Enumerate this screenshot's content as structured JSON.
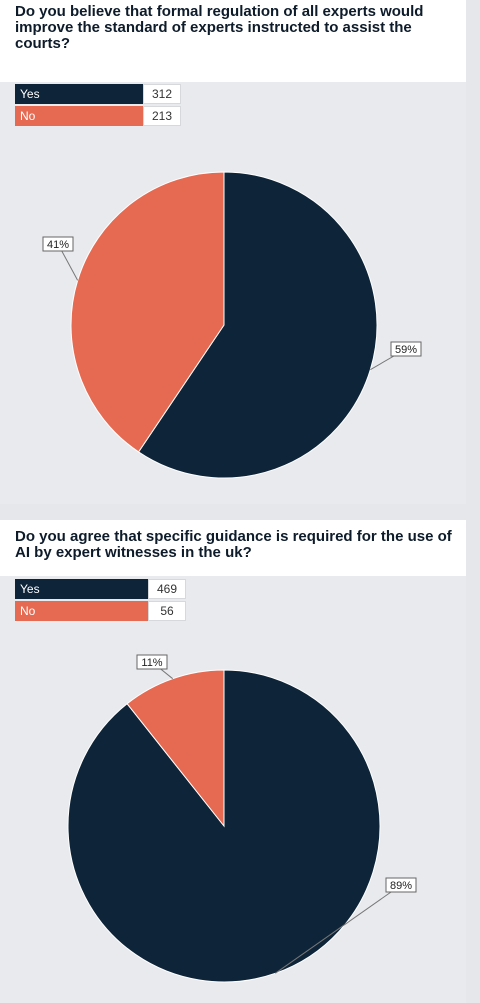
{
  "colors": {
    "yes": "#0e2439",
    "no": "#e66a52",
    "background": "#e9eaee"
  },
  "chart_data": [
    {
      "type": "pie",
      "title": "Do you believe that formal regulation of all experts would improve the standard of experts instructed to assist the courts?",
      "categories": [
        "Yes",
        "No"
      ],
      "values": [
        312,
        213
      ],
      "percent_labels": [
        "59%",
        "41%"
      ]
    },
    {
      "type": "pie",
      "title": "Do you agree that specific guidance is required for the use of AI by expert witnesses in the uk?",
      "categories": [
        "Yes",
        "No"
      ],
      "values": [
        469,
        56
      ],
      "percent_labels": [
        "89%",
        "11%"
      ]
    }
  ]
}
